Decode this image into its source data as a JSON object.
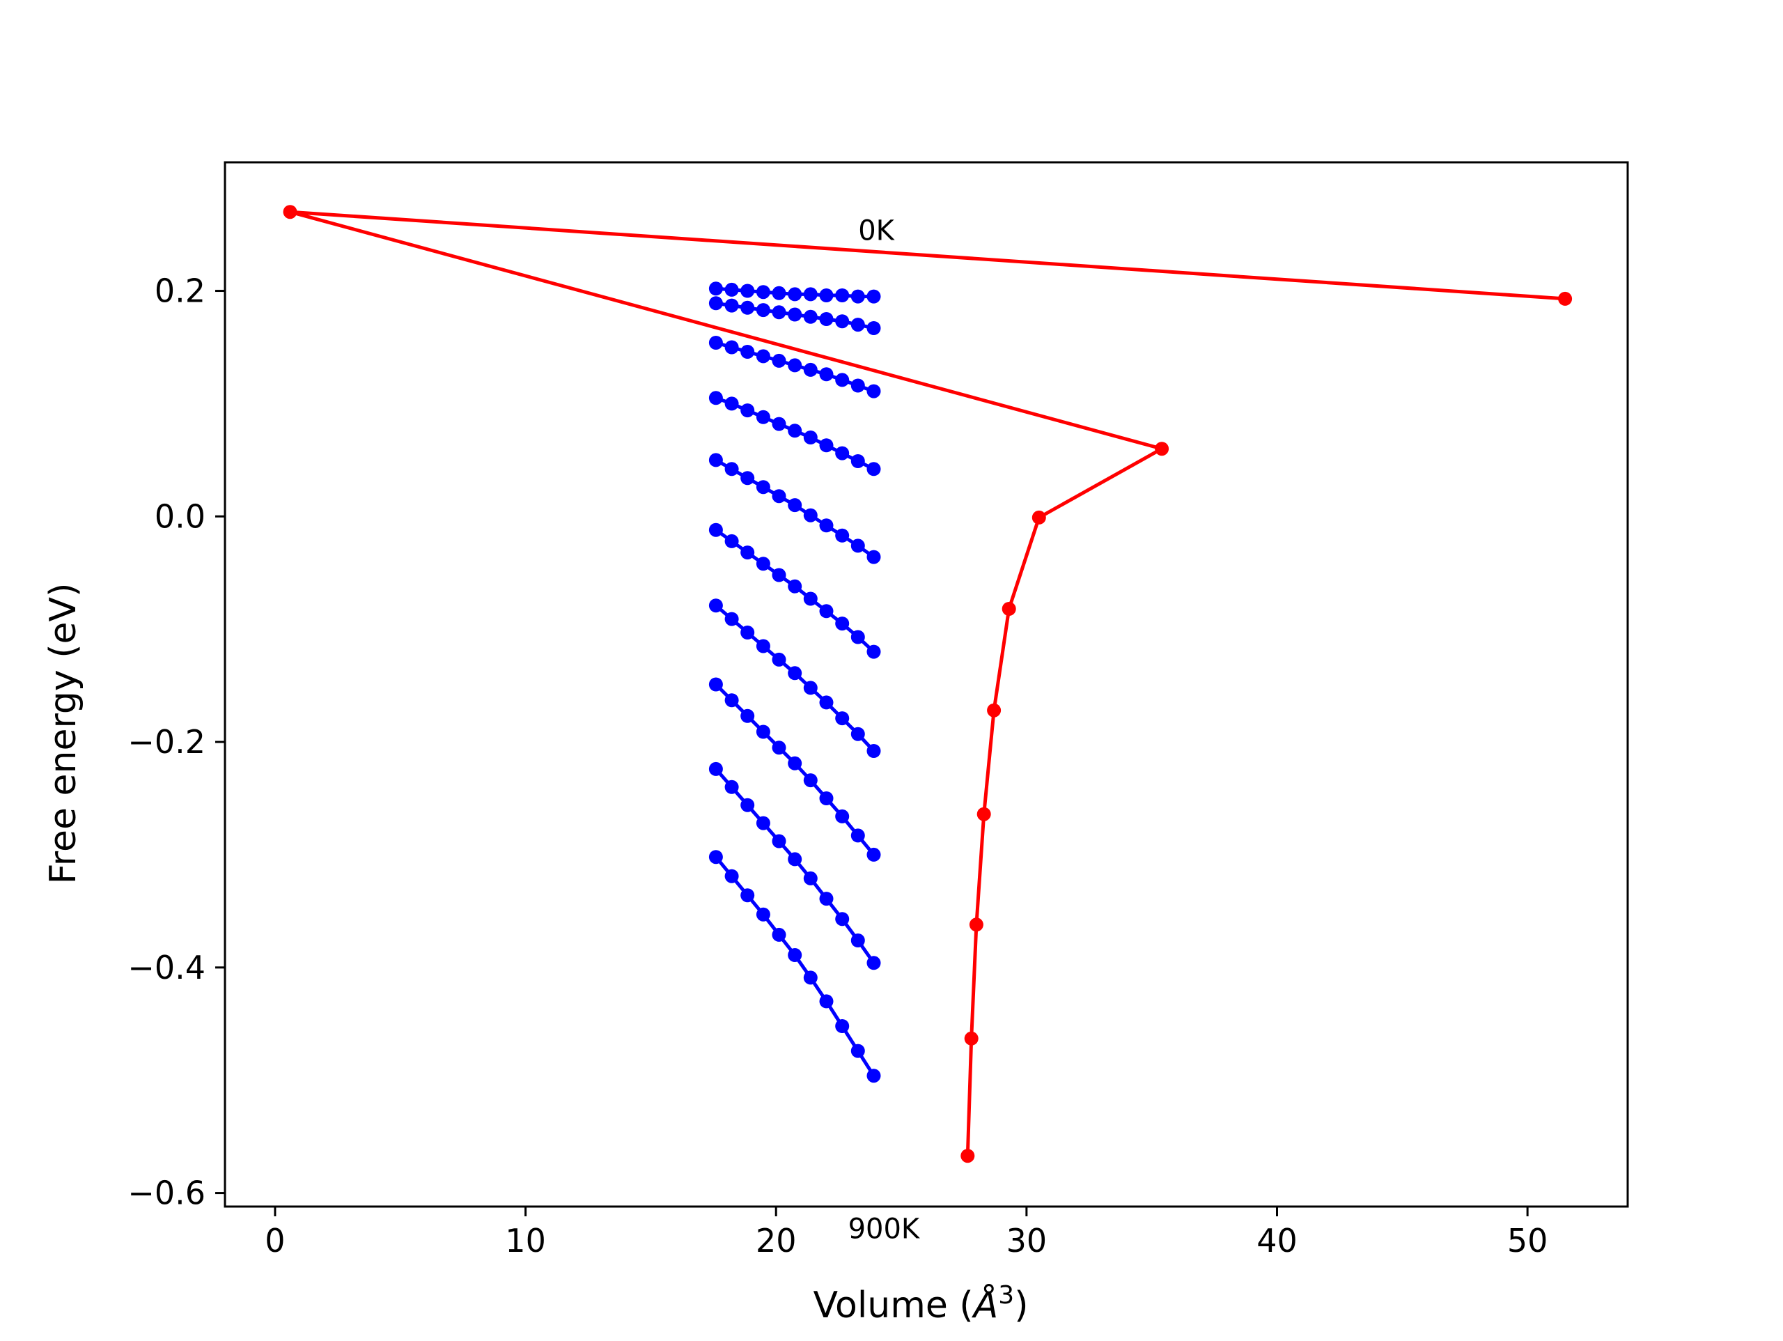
{
  "chart_data": {
    "type": "line",
    "title": "",
    "xlabel": "Volume (Å³)",
    "xlabel_main": "Volume (",
    "xlabel_symbol": "Å",
    "xlabel_power": "3",
    "xlabel_close": ")",
    "ylabel": "Free energy (eV)",
    "xlim": [
      -2,
      54
    ],
    "ylim": [
      -0.612,
      0.314
    ],
    "xticks": [
      0,
      10,
      20,
      30,
      40,
      50
    ],
    "xtick_labels": [
      "0",
      "10",
      "20",
      "30",
      "40",
      "50"
    ],
    "yticks": [
      -0.6,
      -0.4,
      -0.2,
      0.0,
      0.2
    ],
    "ytick_labels": [
      "−0.6",
      "−0.4",
      "−0.2",
      "0.0",
      "0.2"
    ],
    "grid": false,
    "annotations": [
      {
        "text": "0K",
        "x": 24.0,
        "y": 0.245
      },
      {
        "text": "900K",
        "x": 24.3,
        "y": -0.64
      }
    ],
    "series": [
      {
        "group": "isotherms",
        "color": "#0000ff",
        "x": [
          17.6,
          18.23,
          18.86,
          19.49,
          20.12,
          20.75,
          21.38,
          22.01,
          22.64,
          23.27,
          23.9
        ],
        "y": [
          0.202,
          0.201,
          0.2,
          0.199,
          0.198,
          0.197,
          0.197,
          0.196,
          0.196,
          0.195,
          0.195
        ]
      },
      {
        "group": "isotherms",
        "color": "#0000ff",
        "x": [
          17.6,
          18.23,
          18.86,
          19.49,
          20.12,
          20.75,
          21.38,
          22.01,
          22.64,
          23.27,
          23.9
        ],
        "y": [
          0.189,
          0.187,
          0.185,
          0.183,
          0.181,
          0.179,
          0.177,
          0.175,
          0.173,
          0.17,
          0.167
        ]
      },
      {
        "group": "isotherms",
        "color": "#0000ff",
        "x": [
          17.6,
          18.23,
          18.86,
          19.49,
          20.12,
          20.75,
          21.38,
          22.01,
          22.64,
          23.27,
          23.9
        ],
        "y": [
          0.154,
          0.15,
          0.146,
          0.142,
          0.138,
          0.134,
          0.13,
          0.126,
          0.121,
          0.116,
          0.111
        ]
      },
      {
        "group": "isotherms",
        "color": "#0000ff",
        "x": [
          17.6,
          18.23,
          18.86,
          19.49,
          20.12,
          20.75,
          21.38,
          22.01,
          22.64,
          23.27,
          23.9
        ],
        "y": [
          0.105,
          0.1,
          0.094,
          0.088,
          0.082,
          0.076,
          0.07,
          0.063,
          0.056,
          0.049,
          0.042
        ]
      },
      {
        "group": "isotherms",
        "color": "#0000ff",
        "x": [
          17.6,
          18.23,
          18.86,
          19.49,
          20.12,
          20.75,
          21.38,
          22.01,
          22.64,
          23.27,
          23.9
        ],
        "y": [
          0.05,
          0.042,
          0.034,
          0.026,
          0.018,
          0.01,
          0.001,
          -0.008,
          -0.017,
          -0.026,
          -0.036
        ]
      },
      {
        "group": "isotherms",
        "color": "#0000ff",
        "x": [
          17.6,
          18.23,
          18.86,
          19.49,
          20.12,
          20.75,
          21.38,
          22.01,
          22.64,
          23.27,
          23.9
        ],
        "y": [
          -0.012,
          -0.022,
          -0.032,
          -0.042,
          -0.052,
          -0.062,
          -0.073,
          -0.084,
          -0.095,
          -0.107,
          -0.12
        ]
      },
      {
        "group": "isotherms",
        "color": "#0000ff",
        "x": [
          17.6,
          18.23,
          18.86,
          19.49,
          20.12,
          20.75,
          21.38,
          22.01,
          22.64,
          23.27,
          23.9
        ],
        "y": [
          -0.079,
          -0.091,
          -0.103,
          -0.115,
          -0.127,
          -0.139,
          -0.152,
          -0.165,
          -0.179,
          -0.193,
          -0.208
        ]
      },
      {
        "group": "isotherms",
        "color": "#0000ff",
        "x": [
          17.6,
          18.23,
          18.86,
          19.49,
          20.12,
          20.75,
          21.38,
          22.01,
          22.64,
          23.27,
          23.9
        ],
        "y": [
          -0.149,
          -0.163,
          -0.177,
          -0.191,
          -0.205,
          -0.219,
          -0.234,
          -0.25,
          -0.266,
          -0.283,
          -0.3
        ]
      },
      {
        "group": "isotherms",
        "color": "#0000ff",
        "x": [
          17.6,
          18.23,
          18.86,
          19.49,
          20.12,
          20.75,
          21.38,
          22.01,
          22.64,
          23.27,
          23.9
        ],
        "y": [
          -0.224,
          -0.24,
          -0.256,
          -0.272,
          -0.288,
          -0.304,
          -0.321,
          -0.339,
          -0.357,
          -0.376,
          -0.396
        ]
      },
      {
        "group": "isotherms",
        "color": "#0000ff",
        "x": [
          17.6,
          18.23,
          18.86,
          19.49,
          20.12,
          20.75,
          21.38,
          22.01,
          22.64,
          23.27,
          23.9
        ],
        "y": [
          -0.302,
          -0.319,
          -0.336,
          -0.353,
          -0.371,
          -0.389,
          -0.409,
          -0.43,
          -0.452,
          -0.474,
          -0.496
        ]
      },
      {
        "group": "minimum",
        "color": "#ff0000",
        "x": [
          51.5,
          0.6,
          35.4,
          30.5,
          29.3,
          28.7,
          28.3,
          28.0,
          27.8,
          27.65
        ],
        "y": [
          0.193,
          0.27,
          0.06,
          -0.001,
          -0.082,
          -0.172,
          -0.264,
          -0.362,
          -0.463,
          -0.567
        ]
      }
    ]
  }
}
